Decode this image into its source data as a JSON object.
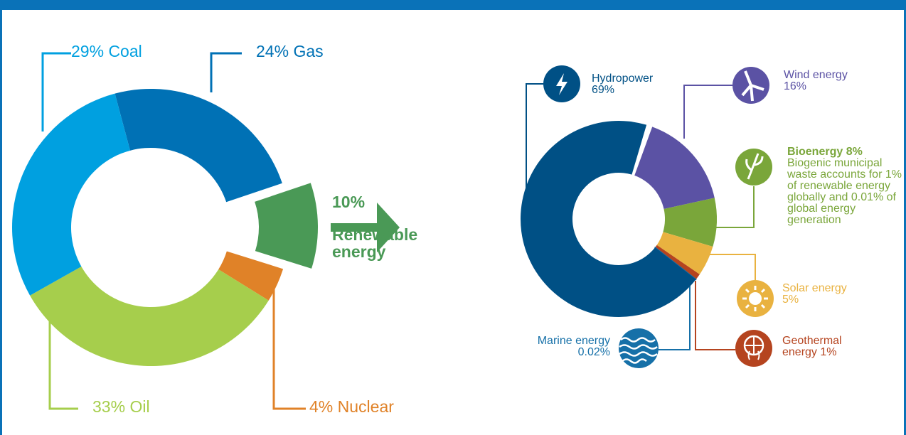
{
  "chart_data": [
    {
      "type": "donut",
      "categories": [
        "Gas",
        "Renewable energy",
        "Nuclear",
        "Oil",
        "Coal"
      ],
      "values": [
        24,
        10,
        4,
        33,
        29
      ],
      "value_labels": [
        "24%",
        "10%",
        "4%",
        "33%",
        "29%"
      ],
      "colors": [
        "#0071b5",
        "#4a9956",
        "#e08228",
        "#a6ce4c",
        "#00a0e0"
      ]
    },
    {
      "type": "donut",
      "categories": [
        "Wind energy",
        "Bioenergy",
        "Solar energy",
        "Geothermal energy",
        "Marine energy",
        "Hydropower"
      ],
      "values": [
        16,
        8,
        5,
        1,
        0.02,
        69
      ],
      "value_labels": [
        "16%",
        "8%",
        "5%",
        "1%",
        "0.02%",
        "69%"
      ],
      "colors": [
        "#5b52a4",
        "#7aa63a",
        "#e9b240",
        "#b5441f",
        "#1670a8",
        "#005085"
      ],
      "annotations": [
        "Biogenic municipal waste accounts for 1% of renewable energy globally and 0.01% of global energy generation"
      ]
    }
  ]
}
